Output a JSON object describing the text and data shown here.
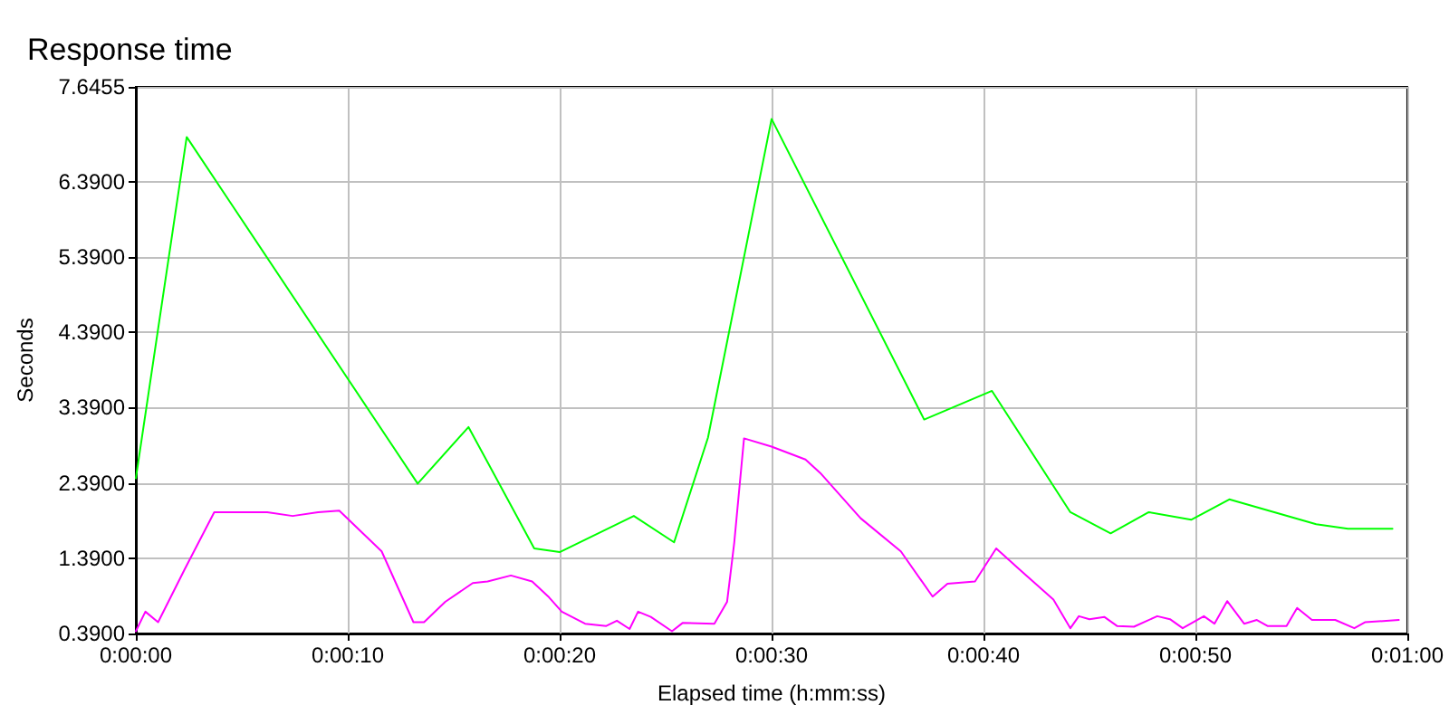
{
  "chart_data": {
    "type": "line",
    "title": "Response time",
    "xlabel": "Elapsed time (h:mm:ss)",
    "ylabel": "Seconds",
    "xlim": [
      0,
      60
    ],
    "xticks": [
      {
        "value": 0,
        "label": "0:00:00"
      },
      {
        "value": 10,
        "label": "0:00:10"
      },
      {
        "value": 20,
        "label": "0:00:20"
      },
      {
        "value": 30,
        "label": "0:00:30"
      },
      {
        "value": 40,
        "label": "0:00:40"
      },
      {
        "value": 50,
        "label": "0:00:50"
      },
      {
        "value": 60,
        "label": "0:01:00"
      }
    ],
    "ylim": [
      0.39,
      7.6455
    ],
    "yticks": [
      {
        "value": 0.39,
        "label": "0.3900"
      },
      {
        "value": 1.39,
        "label": "1.3900"
      },
      {
        "value": 2.39,
        "label": "2.3900"
      },
      {
        "value": 3.39,
        "label": "3.3900"
      },
      {
        "value": 4.39,
        "label": "4.3900"
      },
      {
        "value": 5.39,
        "label": "5.3900"
      },
      {
        "value": 6.39,
        "label": "6.3900"
      },
      7.6455
    ],
    "grid": true,
    "marker": "none",
    "line_style": "solid",
    "series": [
      {
        "color": "#00ff00",
        "x": [
          0,
          2.4,
          13.3,
          15.7,
          18.8,
          20.0,
          23.5,
          25.4,
          27.0,
          30.0,
          37.2,
          40.4,
          44.1,
          46.0,
          47.8,
          49.8,
          51.6,
          55.7,
          57.2,
          59.3
        ],
        "values": [
          2.45,
          6.98,
          2.38,
          3.13,
          1.52,
          1.47,
          1.95,
          1.6,
          2.99,
          7.22,
          3.23,
          3.61,
          2.0,
          1.72,
          2.0,
          1.9,
          2.17,
          1.84,
          1.78,
          1.78
        ]
      },
      {
        "color": "#ff00ff",
        "x": [
          0,
          0.45,
          1.05,
          2.3,
          3.7,
          6.2,
          7.4,
          8.6,
          9.6,
          11.6,
          13.1,
          13.6,
          14.6,
          15.9,
          16.6,
          17.7,
          18.7,
          19.5,
          20.1,
          21.2,
          22.2,
          22.7,
          23.3,
          23.7,
          24.3,
          25.3,
          25.8,
          27.3,
          27.9,
          28.24,
          28.7,
          30.0,
          31.6,
          32.3,
          34.2,
          36.1,
          37.6,
          38.3,
          39.6,
          40.6,
          41.7,
          43.3,
          44.1,
          44.5,
          45.0,
          45.7,
          46.3,
          47.1,
          48.2,
          48.8,
          49.4,
          50.4,
          50.9,
          51.5,
          52.3,
          52.9,
          53.4,
          54.3,
          54.8,
          55.5,
          56.6,
          57.5,
          58.0,
          59.6
        ],
        "values": [
          0.42,
          0.68,
          0.54,
          1.24,
          2.0,
          2.0,
          1.95,
          2.0,
          2.02,
          1.48,
          0.54,
          0.54,
          0.81,
          1.06,
          1.08,
          1.16,
          1.08,
          0.87,
          0.68,
          0.52,
          0.49,
          0.56,
          0.45,
          0.68,
          0.61,
          0.42,
          0.53,
          0.52,
          0.81,
          1.6,
          2.98,
          2.87,
          2.7,
          2.52,
          1.92,
          1.48,
          0.88,
          1.05,
          1.08,
          1.52,
          1.24,
          0.84,
          0.46,
          0.62,
          0.58,
          0.61,
          0.49,
          0.48,
          0.62,
          0.58,
          0.46,
          0.62,
          0.52,
          0.82,
          0.52,
          0.57,
          0.49,
          0.49,
          0.73,
          0.57,
          0.57,
          0.46,
          0.54,
          0.57
        ]
      }
    ]
  }
}
